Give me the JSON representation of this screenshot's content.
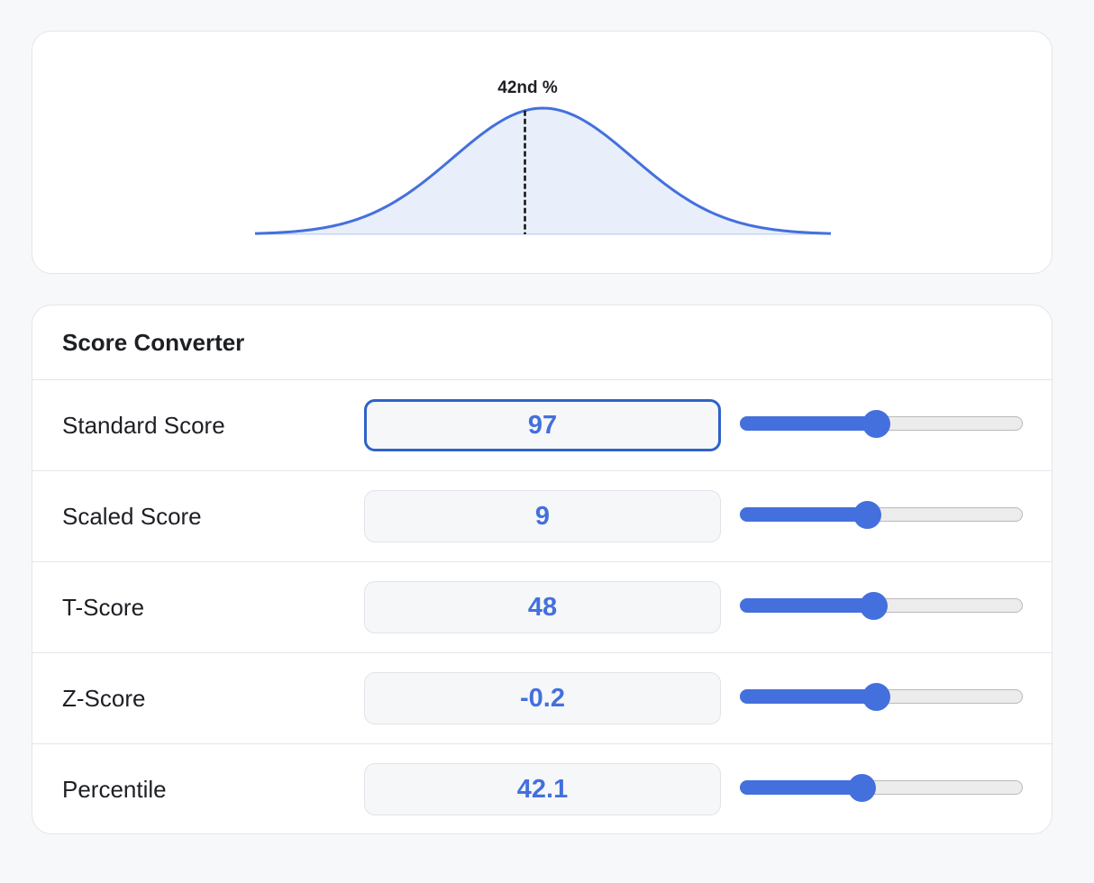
{
  "chart_data": {
    "type": "area",
    "distribution": "normal",
    "x_range": [
      -3.2,
      3.2
    ],
    "marker_percentile": 42.1,
    "marker_z": -0.2,
    "marker_label": "42nd %",
    "line_color": "#4470dd",
    "fill_color": "#e8eefa",
    "marker_color": "#111111",
    "grid": false
  },
  "converter": {
    "title": "Score Converter",
    "accent_color": "#4470dd",
    "rows": [
      {
        "label": "Standard Score",
        "value": "97",
        "slider_fraction": 0.48,
        "focused": true
      },
      {
        "label": "Scaled Score",
        "value": "9",
        "slider_fraction": 0.45,
        "focused": false
      },
      {
        "label": "T-Score",
        "value": "48",
        "slider_fraction": 0.47,
        "focused": false
      },
      {
        "label": "Z-Score",
        "value": "-0.2",
        "slider_fraction": 0.48,
        "focused": false
      },
      {
        "label": "Percentile",
        "value": "42.1",
        "slider_fraction": 0.43,
        "focused": false
      }
    ]
  }
}
